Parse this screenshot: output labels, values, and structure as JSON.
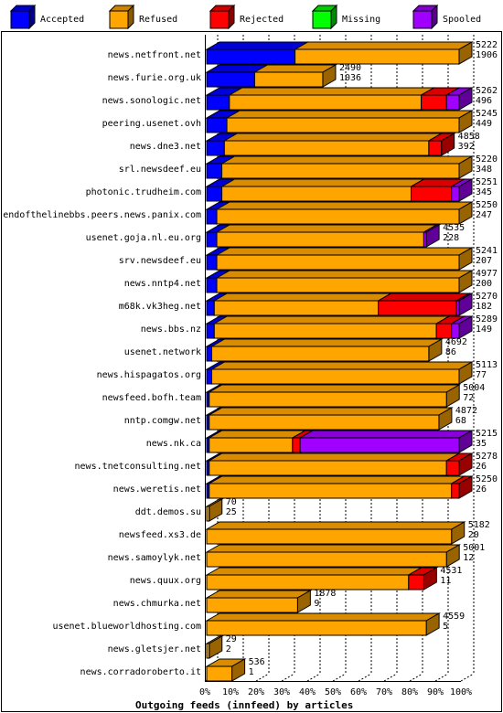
{
  "colors": {
    "background": "#ffffff",
    "grid": "#000000",
    "frame": "#000000"
  },
  "chart_data": {
    "type": "bar",
    "stacked": true,
    "orientation": "horizontal",
    "title": "Outgoing feeds (innfeed) by articles",
    "x_ticks": [
      "0%",
      "10%",
      "20%",
      "30%",
      "40%",
      "50%",
      "60%",
      "70%",
      "80%",
      "90%",
      "100%"
    ],
    "xlim": [
      0,
      100
    ],
    "grid": true,
    "legend_position": "top",
    "series": [
      {
        "name": "Accepted",
        "color": "#0000ff",
        "icon": "accepted-legend-icon"
      },
      {
        "name": "Refused",
        "color": "#ffa500",
        "icon": "refused-legend-icon"
      },
      {
        "name": "Rejected",
        "color": "#ff0000",
        "icon": "rejected-legend-icon"
      },
      {
        "name": "Missing",
        "color": "#00ff00",
        "icon": "missing-legend-icon"
      },
      {
        "name": "Spooled",
        "color": "#a000ff",
        "icon": "spooled-legend-icon"
      }
    ],
    "categories": [
      {
        "name": "news.netfront.net",
        "offered": 5222,
        "accepted": 1906,
        "pct": [
          35,
          65,
          0,
          0,
          0
        ]
      },
      {
        "name": "news.furie.org.uk",
        "offered": 2490,
        "accepted": 1036,
        "pct": [
          19,
          27,
          0,
          0,
          0
        ]
      },
      {
        "name": "news.sonologic.net",
        "offered": 5262,
        "accepted": 496,
        "pct": [
          9,
          76,
          10,
          0,
          5
        ]
      },
      {
        "name": "peering.usenet.ovh",
        "offered": 5245,
        "accepted": 449,
        "pct": [
          8,
          92,
          0,
          0,
          0
        ]
      },
      {
        "name": "news.dne3.net",
        "offered": 4858,
        "accepted": 392,
        "pct": [
          7,
          81,
          5,
          0,
          0
        ]
      },
      {
        "name": "srl.newsdeef.eu",
        "offered": 5220,
        "accepted": 348,
        "pct": [
          6,
          94,
          0,
          0,
          0
        ]
      },
      {
        "name": "photonic.trudheim.com",
        "offered": 5251,
        "accepted": 345,
        "pct": [
          6,
          75,
          16,
          0,
          3
        ]
      },
      {
        "name": "endofthelinebbs.peers.news.panix.com",
        "offered": 5250,
        "accepted": 247,
        "pct": [
          4,
          96,
          0,
          0,
          0
        ]
      },
      {
        "name": "usenet.goja.nl.eu.org",
        "offered": 4535,
        "accepted": 228,
        "pct": [
          4,
          82,
          0,
          0,
          1
        ]
      },
      {
        "name": "srv.newsdeef.eu",
        "offered": 5241,
        "accepted": 207,
        "pct": [
          4,
          96,
          0,
          0,
          0
        ]
      },
      {
        "name": "news.nntp4.net",
        "offered": 4977,
        "accepted": 200,
        "pct": [
          4,
          96,
          0,
          0,
          0
        ]
      },
      {
        "name": "m68k.vk3heg.net",
        "offered": 5270,
        "accepted": 182,
        "pct": [
          3,
          65,
          31,
          0,
          1
        ]
      },
      {
        "name": "news.bbs.nz",
        "offered": 5289,
        "accepted": 149,
        "pct": [
          3,
          88,
          6,
          0,
          3
        ]
      },
      {
        "name": "usenet.network",
        "offered": 4692,
        "accepted": 86,
        "pct": [
          2,
          86,
          0,
          0,
          0
        ]
      },
      {
        "name": "news.hispagatos.org",
        "offered": 5113,
        "accepted": 77,
        "pct": [
          2,
          98,
          0,
          0,
          0
        ]
      },
      {
        "name": "newsfeed.bofh.team",
        "offered": 5004,
        "accepted": 72,
        "pct": [
          1,
          94,
          0,
          0,
          0
        ]
      },
      {
        "name": "nntp.comgw.net",
        "offered": 4872,
        "accepted": 68,
        "pct": [
          1,
          91,
          0,
          0,
          0
        ]
      },
      {
        "name": "news.nk.ca",
        "offered": 5215,
        "accepted": 35,
        "pct": [
          1,
          33,
          3,
          0,
          63
        ]
      },
      {
        "name": "news.tnetconsulting.net",
        "offered": 5278,
        "accepted": 26,
        "pct": [
          1,
          94,
          5,
          0,
          0
        ]
      },
      {
        "name": "news.weretis.net",
        "offered": 5250,
        "accepted": 26,
        "pct": [
          1,
          96,
          3,
          0,
          0
        ]
      },
      {
        "name": "ddt.demos.su",
        "offered": 70,
        "accepted": 25,
        "pct": [
          0,
          1,
          0,
          0,
          0
        ]
      },
      {
        "name": "newsfeed.xs3.de",
        "offered": 5182,
        "accepted": 20,
        "pct": [
          0,
          97,
          0,
          0,
          0
        ]
      },
      {
        "name": "news.samoylyk.net",
        "offered": 5001,
        "accepted": 12,
        "pct": [
          0,
          95,
          0,
          0,
          0
        ]
      },
      {
        "name": "news.quux.org",
        "offered": 4531,
        "accepted": 11,
        "pct": [
          0,
          80,
          6,
          0,
          0
        ]
      },
      {
        "name": "news.chmurka.net",
        "offered": 1878,
        "accepted": 9,
        "pct": [
          0,
          36,
          0,
          0,
          0
        ]
      },
      {
        "name": "usenet.blueworldhosting.com",
        "offered": 4559,
        "accepted": 5,
        "pct": [
          0,
          87,
          0,
          0,
          0
        ]
      },
      {
        "name": "news.gletsjer.net",
        "offered": 29,
        "accepted": 2,
        "pct": [
          0,
          1,
          0,
          0,
          0
        ]
      },
      {
        "name": "news.corradoroberto.it",
        "offered": 536,
        "accepted": 1,
        "pct": [
          0,
          10,
          0,
          0,
          0
        ]
      }
    ]
  }
}
